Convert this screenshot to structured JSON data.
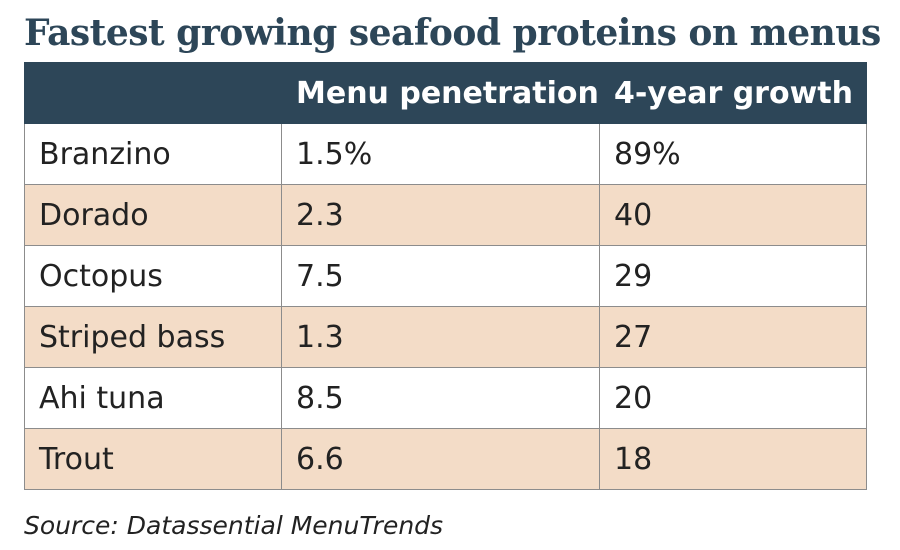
{
  "colors": {
    "title": "#2d4658",
    "header_bg": "#2d4658",
    "row_odd": "#ffffff",
    "row_even": "#f3dcc7"
  },
  "chart_data": {
    "type": "table",
    "title": "Fastest growing seafood proteins on menus",
    "columns": [
      "",
      "Menu penetration",
      "4-year growth"
    ],
    "rows": [
      [
        "Branzino",
        "1.5%",
        "89%"
      ],
      [
        "Dorado",
        "2.3",
        "40"
      ],
      [
        "Octopus",
        "7.5",
        "29"
      ],
      [
        "Striped bass",
        "1.3",
        "27"
      ],
      [
        "Ahi tuna",
        "8.5",
        "20"
      ],
      [
        "Trout",
        "6.6",
        "18"
      ]
    ],
    "source": "Source: Datassential MenuTrends"
  }
}
